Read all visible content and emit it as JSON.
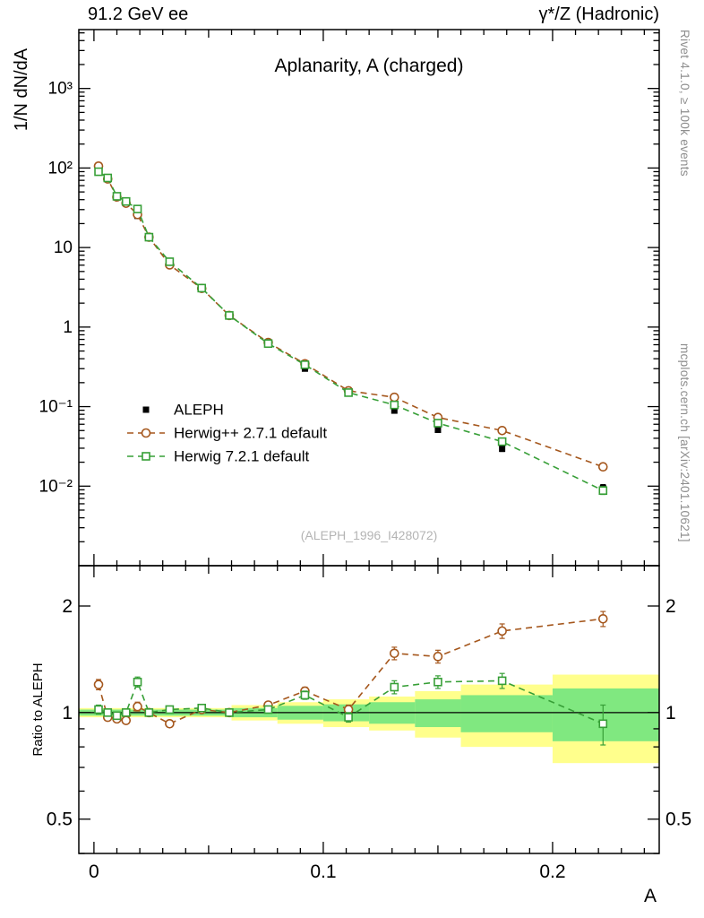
{
  "header": {
    "left": "91.2 GeV ee",
    "right": "γ*/Z (Hadronic)"
  },
  "side_notes": {
    "top_right": "Rivet 4.1.0, ≥ 100k events",
    "bottom_right": "mcplots.cern.ch [arXiv:2401.10621]"
  },
  "chart_data": {
    "type": "line",
    "title": "Aplanarity, A (charged)",
    "watermark": "(ALEPH_1996_I428072)",
    "xlabel": "A",
    "ylabel_main": "1/N  dN/dA",
    "ylabel_ratio": "Ratio to ALEPH",
    "x_range": [
      -0.0066,
      0.2465
    ],
    "x_major_ticks": [
      {
        "v": 0,
        "label": "0"
      },
      {
        "v": 0.1,
        "label": "0.1"
      },
      {
        "v": 0.2,
        "label": "0.2"
      }
    ],
    "y_main_range": [
      0.001,
      5500
    ],
    "y_main_ticks": [
      {
        "v": 0.01,
        "label": "10⁻²"
      },
      {
        "v": 0.1,
        "label": "10⁻¹"
      },
      {
        "v": 1,
        "label": "1"
      },
      {
        "v": 10,
        "label": "10"
      },
      {
        "v": 100,
        "label": "10²"
      },
      {
        "v": 1000,
        "label": "10³"
      }
    ],
    "y_ratio_range": [
      0.4,
      2.6
    ],
    "y_ratio_ticks": [
      {
        "v": 0.5,
        "label": "0.5"
      },
      {
        "v": 1,
        "label": "1"
      },
      {
        "v": 2,
        "label": "2"
      }
    ],
    "y_ratio_minor_ticks": [
      0.4,
      0.6,
      0.7,
      0.8,
      0.9
    ],
    "x": [
      0.002,
      0.006,
      0.01,
      0.014,
      0.019,
      0.024,
      0.033,
      0.047,
      0.059,
      0.076,
      0.092,
      0.111,
      0.131,
      0.15,
      0.178,
      0.222
    ],
    "series": [
      {
        "name": "ALEPH",
        "role": "data",
        "marker": "filled-square",
        "color": "#000000",
        "values": [
          88,
          75,
          45,
          38,
          25,
          13.5,
          6.5,
          3.0,
          1.4,
          0.61,
          0.3,
          0.155,
          0.089,
          0.051,
          0.0295,
          0.0095
        ],
        "rel_err": [
          0.02,
          0.02,
          0.02,
          0.02,
          0.02,
          0.02,
          0.02,
          0.02,
          0.02,
          0.02,
          0.03,
          0.03,
          0.04,
          0.05,
          0.08,
          0.1
        ]
      },
      {
        "name": "Herwig++ 2.7.1 default",
        "role": "mc",
        "marker": "open-circle",
        "color": "#a5571d",
        "linestyle": "dashed",
        "values": [
          105.6,
          72.8,
          43.2,
          36.1,
          26.0,
          13.5,
          6.05,
          3.06,
          1.4,
          0.64,
          0.345,
          0.158,
          0.131,
          0.073,
          0.05,
          0.0175
        ],
        "ratio": [
          1.2,
          0.97,
          0.96,
          0.95,
          1.04,
          1.0,
          0.93,
          1.02,
          1.0,
          1.05,
          1.15,
          1.02,
          1.47,
          1.44,
          1.7,
          1.84
        ],
        "ratio_err": [
          0.04,
          0.02,
          0.02,
          0.02,
          0.03,
          0.02,
          0.02,
          0.02,
          0.02,
          0.02,
          0.03,
          0.03,
          0.06,
          0.06,
          0.08,
          0.09
        ]
      },
      {
        "name": "Herwig 7.2.1 default",
        "role": "mc",
        "marker": "open-square",
        "color": "#379f37",
        "linestyle": "dashed",
        "values": [
          89.8,
          75.0,
          44.1,
          38.0,
          30.5,
          13.5,
          6.63,
          3.09,
          1.4,
          0.62,
          0.336,
          0.15,
          0.105,
          0.062,
          0.0363,
          0.0088
        ],
        "ratio": [
          1.02,
          1.0,
          0.98,
          1.0,
          1.22,
          1.0,
          1.02,
          1.03,
          1.0,
          1.02,
          1.12,
          0.97,
          1.18,
          1.22,
          1.23,
          0.93
        ],
        "ratio_err": [
          0.03,
          0.02,
          0.02,
          0.02,
          0.04,
          0.02,
          0.02,
          0.02,
          0.02,
          0.02,
          0.03,
          0.03,
          0.05,
          0.05,
          0.06,
          0.12
        ]
      }
    ],
    "band_colors": {
      "yellow": "#ffff8c",
      "green": "#80e880"
    },
    "ratio_bands": [
      {
        "x0": -0.0066,
        "x1": 0.06,
        "yellow": 0.03,
        "green": 0.02
      },
      {
        "x0": 0.06,
        "x1": 0.08,
        "yellow": 0.05,
        "green": 0.03
      },
      {
        "x0": 0.08,
        "x1": 0.1,
        "yellow": 0.07,
        "green": 0.045
      },
      {
        "x0": 0.1,
        "x1": 0.12,
        "yellow": 0.09,
        "green": 0.055
      },
      {
        "x0": 0.12,
        "x1": 0.14,
        "yellow": 0.11,
        "green": 0.07
      },
      {
        "x0": 0.14,
        "x1": 0.16,
        "yellow": 0.15,
        "green": 0.09
      },
      {
        "x0": 0.16,
        "x1": 0.2,
        "yellow": 0.2,
        "green": 0.12
      },
      {
        "x0": 0.2,
        "x1": 0.25,
        "yellow": 0.28,
        "green": 0.17
      }
    ]
  }
}
